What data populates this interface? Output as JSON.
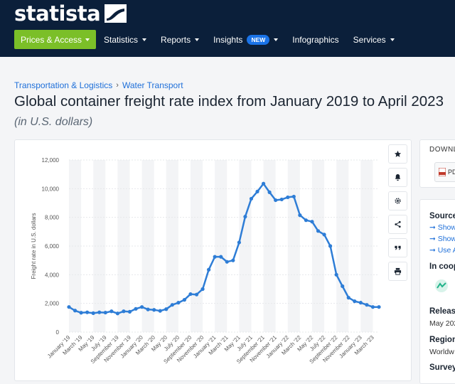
{
  "brand": {
    "name": "statista"
  },
  "nav": {
    "primary": "Prices & Access",
    "items": [
      "Statistics",
      "Reports",
      "Insights",
      "Infographics",
      "Services"
    ],
    "new_badge": "NEW"
  },
  "breadcrumb": [
    "Transportation & Logistics",
    "Water Transport"
  ],
  "breadcrumb_sep": "›",
  "title": "Global container freight rate index from January 2019 to April 2023",
  "subtitle": "(in U.S. dollars)",
  "toolbar_icons": [
    "star-icon",
    "bell-icon",
    "gear-icon",
    "share-icon",
    "quote-icon",
    "print-icon"
  ],
  "side": {
    "download_title": "DOWNL",
    "pdf_label": "PD",
    "source_title": "Source",
    "source_links": [
      "Show",
      "Show",
      "Use A"
    ],
    "coop_title": "In coop",
    "release_title": "Releas",
    "release_value": "May 202",
    "region_title": "Region",
    "region_value": "Worldw",
    "survey_title": "Survey"
  },
  "colors": {
    "topbar": "#0b1f3a",
    "accent": "#7bbf28",
    "link": "#1e6fd9",
    "line": "#2e7dd6",
    "new_badge": "#1a73e8"
  },
  "chart_data": {
    "type": "line",
    "ylabel": "Freight rate in U.S. dollars",
    "ylim": [
      0,
      12000
    ],
    "yticks": [
      0,
      2000,
      4000,
      6000,
      8000,
      10000,
      12000
    ],
    "ytick_labels": [
      "0",
      "2,000",
      "4,000",
      "6,000",
      "8,000",
      "10,000",
      "12,000"
    ],
    "x_labels_shown": [
      "January '19",
      "March '19",
      "May '19",
      "July '19",
      "September '19",
      "November '19",
      "January '20",
      "March '20",
      "May '20",
      "July '20",
      "September '20",
      "November '20",
      "January '21",
      "March '21",
      "May '21",
      "July '21",
      "September '21",
      "November '21",
      "January '22",
      "March '22",
      "May '22",
      "July '22",
      "September '22",
      "November '22",
      "January '23",
      "March '23"
    ],
    "grid": true,
    "series": [
      {
        "values": [
          1750,
          1500,
          1350,
          1380,
          1320,
          1380,
          1360,
          1450,
          1300,
          1450,
          1420,
          1620,
          1750,
          1580,
          1550,
          1480,
          1600,
          1900,
          2050,
          2250,
          2650,
          2620,
          3000,
          4350,
          5250,
          5250,
          4900,
          5000,
          6250,
          8050,
          9300,
          9800,
          10350,
          9750,
          9200,
          9250,
          9400,
          9450,
          8150,
          7800,
          7700,
          7050,
          6800,
          6000,
          4000,
          3200,
          2400,
          2150,
          2050,
          1900,
          1750,
          1750
        ]
      }
    ]
  }
}
